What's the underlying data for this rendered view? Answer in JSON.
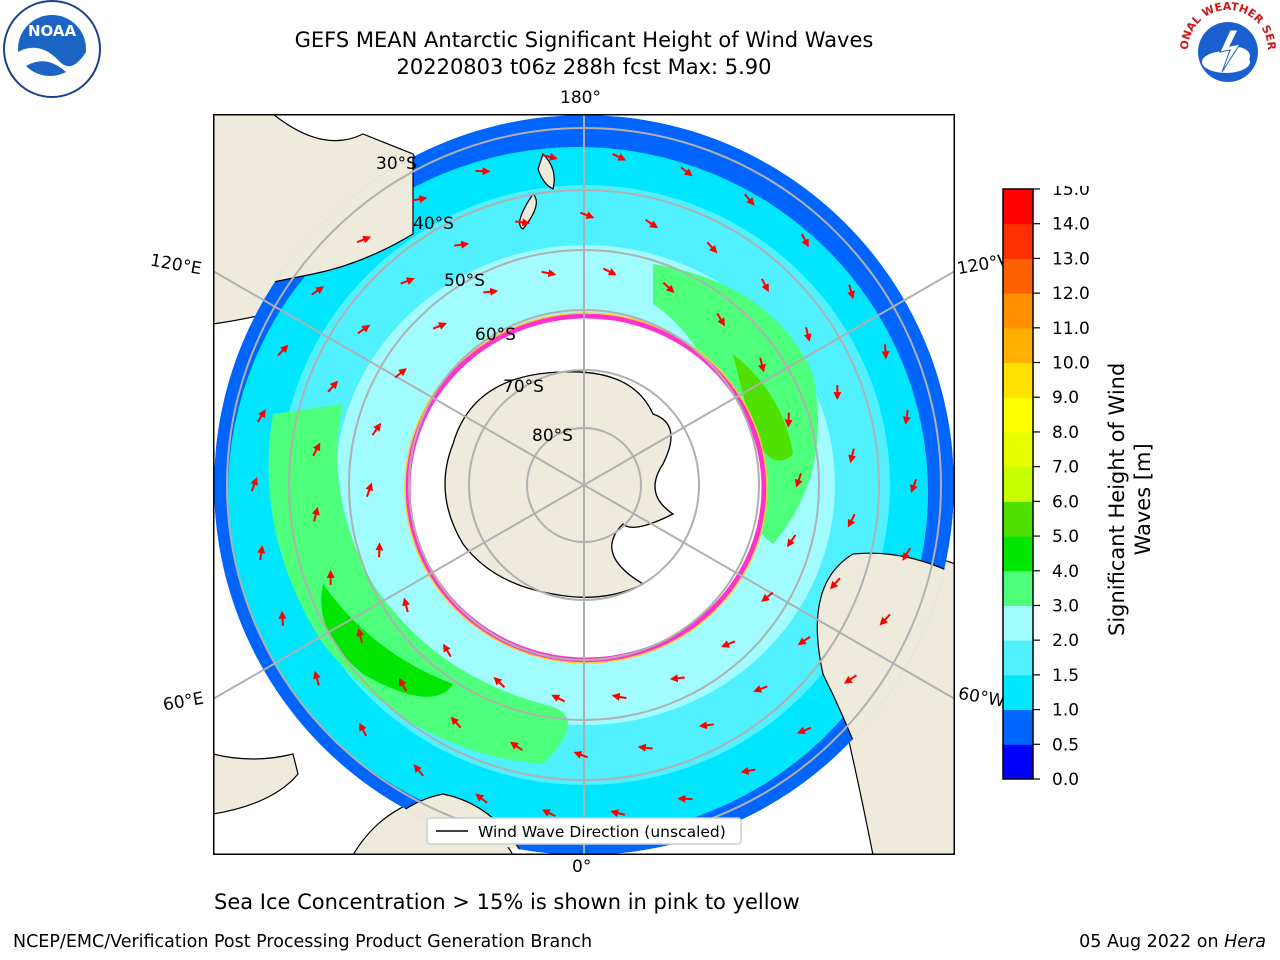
{
  "title_line1": "GEFS MEAN Antarctic Significant Height of Wind Waves",
  "title_line2": "20220803 t06z 288h fcst   Max: 5.90",
  "logos": {
    "left": "noaa-logo",
    "right": "national-weather-service-logo",
    "left_text": "NOAA",
    "right_text": "NATIONAL WEATHER SERVICE"
  },
  "map": {
    "lon_labels": {
      "top": "180°",
      "bottom": "0°",
      "left_upper": "120°E",
      "left_lower": "60°E",
      "right_upper": "120°W",
      "right_lower": "60°W"
    },
    "lat_labels": [
      "30°S",
      "40°S",
      "50°S",
      "60°S",
      "70°S",
      "80°S"
    ],
    "legend": "Wind Wave Direction (unscaled)",
    "colors": {
      "land": "#eeeadc",
      "ice_edge": "#ff33cc",
      "grid": "#b0b0b0",
      "arrow": "#ff0000"
    }
  },
  "colorbar": {
    "label_line1": "Significant Height of Wind",
    "label_line2": "Waves [m]",
    "ticks": [
      "0.0",
      "0.5",
      "1.0",
      "1.5",
      "2.0",
      "3.0",
      "4.0",
      "5.0",
      "6.0",
      "7.0",
      "8.0",
      "9.0",
      "10.0",
      "11.0",
      "12.0",
      "13.0",
      "14.0",
      "15.0"
    ],
    "colors": [
      "#0000ff",
      "#0064ff",
      "#00e6ff",
      "#50f0ff",
      "#a0fcff",
      "#4dff7a",
      "#00e600",
      "#50e000",
      "#c8ff00",
      "#e6ff00",
      "#ffff00",
      "#ffe000",
      "#ffb000",
      "#ff9000",
      "#ff6000",
      "#ff3000",
      "#ff0000"
    ]
  },
  "sea_ice_note": "Sea Ice Concentration > 15% is shown in pink to yellow",
  "footer_left": "NCEP/EMC/Verification Post Processing Product Generation Branch",
  "footer_right_date": "05 Aug 2022 on ",
  "footer_right_host": "Hera"
}
